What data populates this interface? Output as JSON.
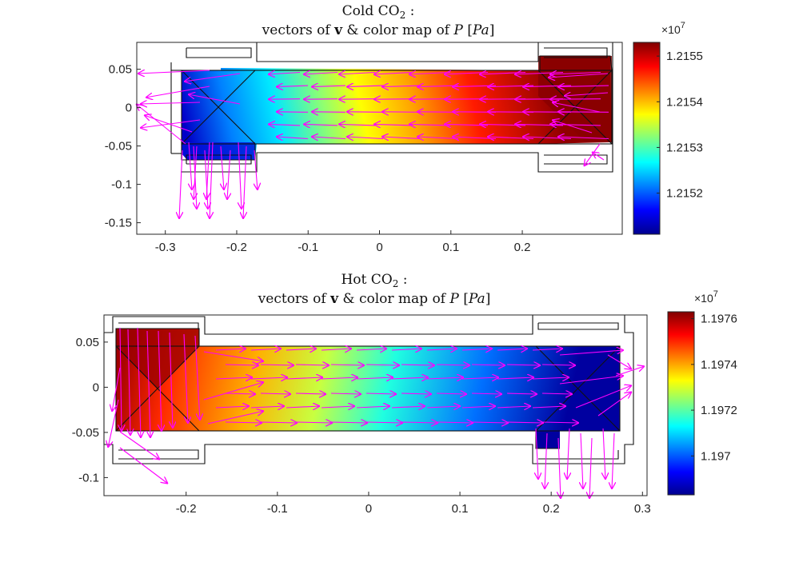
{
  "chart_data": [
    {
      "type": "vector-field-colormap",
      "title_line1_pre": "Cold CO",
      "title_line1_sub": "2",
      "title_line1_post": " :",
      "title_line2": {
        "a": "vectors of ",
        "bold": "v",
        "b": " & color map of ",
        "it1": "P",
        "c": " [",
        "it2": "Pa",
        "d": "]"
      },
      "xlim": [
        -0.34,
        0.34
      ],
      "ylim": [
        -0.165,
        0.085
      ],
      "xticks": [
        -0.3,
        -0.2,
        -0.1,
        0,
        0.1,
        0.2
      ],
      "xtick_labels": [
        "-0.3",
        "-0.2",
        "-0.1",
        "0",
        "0.1",
        "0.2"
      ],
      "yticks": [
        0.05,
        0,
        -0.05,
        -0.1,
        -0.15
      ],
      "ytick_labels": [
        "0.05",
        "0",
        "-0.05",
        "-0.1",
        "-0.15"
      ],
      "colorbar": {
        "exponent_base": "×10",
        "exponent_power": "7",
        "range": [
          1.21511,
          1.21553
        ],
        "ticks": [
          1.2155,
          1.2154,
          1.2153,
          1.2152
        ],
        "tick_labels": [
          "1.2155",
          "1.2154",
          "1.2153",
          "1.2152"
        ],
        "colormap": "jet"
      },
      "pressure_field": "high on right (x≈0.28), low at left-bottom (x≈-0.27, y≈-0.05)",
      "flow_direction": "leftward, exiting downward through left bottom port",
      "arrow_color": "#ff00ff"
    },
    {
      "type": "vector-field-colormap",
      "title_line1_pre": "Hot CO",
      "title_line1_sub": "2",
      "title_line1_post": " :",
      "title_line2": {
        "a": "vectors of ",
        "bold": "v",
        "b": " & color map of ",
        "it1": "P",
        "c": " [",
        "it2": "Pa",
        "d": "]"
      },
      "xlim": [
        -0.29,
        0.305
      ],
      "ylim": [
        -0.12,
        0.08
      ],
      "xticks": [
        -0.2,
        -0.1,
        0,
        0.1,
        0.2,
        0.3
      ],
      "xtick_labels": [
        "-0.2",
        "-0.1",
        "0",
        "0.1",
        "0.2",
        "0.3"
      ],
      "yticks": [
        0.05,
        0,
        -0.05,
        -0.1
      ],
      "ytick_labels": [
        "0.05",
        "0",
        "-0.05",
        "-0.1"
      ],
      "colorbar": {
        "exponent_base": "×10",
        "exponent_power": "7",
        "range": [
          1.19683,
          1.19763
        ],
        "ticks": [
          1.1976,
          1.1974,
          1.1972,
          1.197
        ],
        "tick_labels": [
          "1.1976",
          "1.1974",
          "1.1972",
          "1.197"
        ],
        "colormap": "jet"
      },
      "pressure_field": "high on left (x≈-0.27), low at right-bottom (x≈0.2, y≈-0.05)",
      "flow_direction": "rightward, exiting downward through right bottom port",
      "arrow_color": "#ff00ff"
    }
  ]
}
